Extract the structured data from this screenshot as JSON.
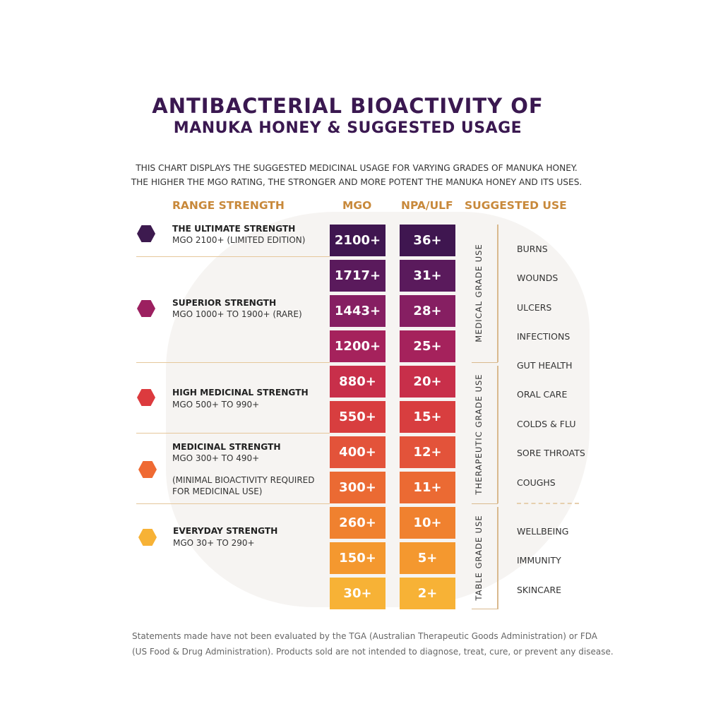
{
  "title_line1": "ANTIBACTERIAL BIOACTIVITY OF",
  "title_line2": "MANUKA HONEY & SUGGESTED USAGE",
  "intro_line1": "THIS CHART DISPLAYS THE SUGGESTED MEDICINAL USAGE FOR VARYING GRADES OF MANUKA HONEY.",
  "intro_line2": "THE HIGHER THE MGO RATING, THE STRONGER AND MORE POTENT THE MANUKA HONEY AND ITS USES.",
  "headers": {
    "range": "RANGE STRENGTH",
    "mgo": "MGO",
    "npa": "NPA/ULF",
    "use": "SUGGESTED USE"
  },
  "ranges": [
    {
      "name": "THE ULTIMATE STRENGTH",
      "sub": "MGO 2100+ (LIMITED EDITION)",
      "color": "#3d1a4f"
    },
    {
      "name": "SUPERIOR STRENGTH",
      "sub": "MGO 1000+ TO 1900+ (RARE)",
      "color": "#9c2060"
    },
    {
      "name": "HIGH MEDICINAL STRENGTH",
      "sub": "MGO 500+ TO 990+",
      "color": "#dc3a3e"
    },
    {
      "name": "MEDICINAL STRENGTH",
      "sub": "MGO 300+ TO 490+",
      "note1": "(MINIMAL BIOACTIVITY REQUIRED",
      "note2": "FOR MEDICINAL USE)",
      "color": "#ef6a33"
    },
    {
      "name": "EVERYDAY STRENGTH",
      "sub": "MGO 30+ TO 290+",
      "color": "#f7b236"
    }
  ],
  "chart_data": {
    "type": "table",
    "title": "ANTIBACTERIAL BIOACTIVITY OF MANUKA HONEY & SUGGESTED USAGE",
    "columns": [
      "MGO",
      "NPA/ULF"
    ],
    "mgo": [
      "2100+",
      "1717+",
      "1443+",
      "1200+",
      "880+",
      "550+",
      "400+",
      "300+",
      "260+",
      "150+",
      "30+"
    ],
    "npa": [
      "36+",
      "31+",
      "28+",
      "25+",
      "20+",
      "15+",
      "12+",
      "11+",
      "10+",
      "5+",
      "2+"
    ],
    "colors": [
      "#3f1650",
      "#5a1a5c",
      "#861f62",
      "#a5225c",
      "#c82f4a",
      "#d83e3f",
      "#e3533a",
      "#eb6a33",
      "#f0812f",
      "#f4982f",
      "#f7b236"
    ]
  },
  "grades": [
    "MEDICAL GRADE USE",
    "THERAPEUTIC GRADE USE",
    "TABLE GRADE USE"
  ],
  "uses": [
    "BURNS",
    "WOUNDS",
    "ULCERS",
    "INFECTIONS",
    "GUT HEALTH",
    "ORAL CARE",
    "COLDS & FLU",
    "SORE THROATS",
    "COUGHS",
    "WELLBEING",
    "IMMUNITY",
    "SKINCARE"
  ],
  "footer_line1": "Statements made have not been evaluated by the TGA (Australian Therapeutic Goods Administration) or FDA",
  "footer_line2": "(US Food & Drug Administration). Products sold are not intended to diagnose, treat, cure, or prevent any disease."
}
